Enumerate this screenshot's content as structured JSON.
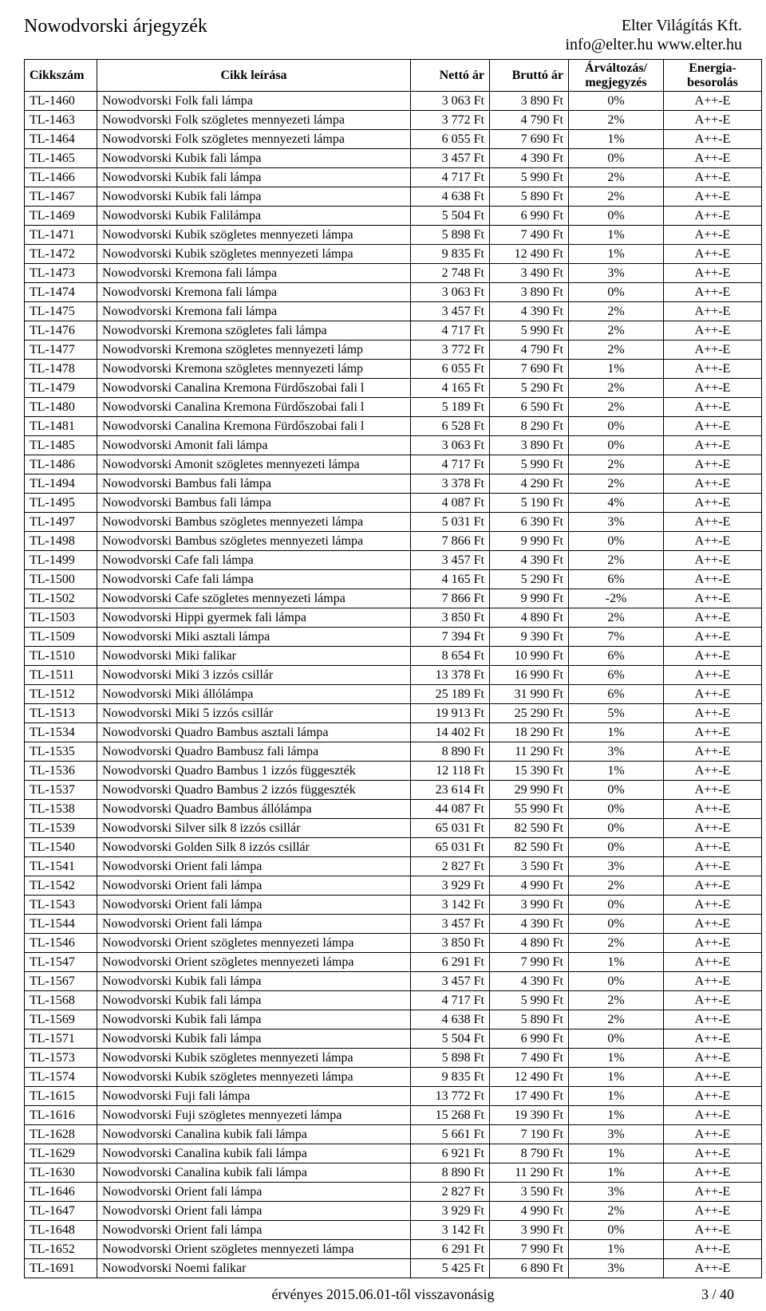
{
  "header": {
    "title_left": "Nowodvorski árjegyzék",
    "company": "Elter Világítás Kft.",
    "contact": "info@elter.hu  www.elter.hu"
  },
  "table": {
    "columns": {
      "code": "Cikkszám",
      "desc": "Cikk leírása",
      "net": "Nettó ár",
      "gross": "Bruttó ár",
      "change": "Árváltozás/\nmegjegyzés",
      "energy": "Energia-\nbesorolás"
    },
    "rows": [
      [
        "TL-1460",
        "Nowodvorski Folk fali lámpa",
        "3 063 Ft",
        "3 890 Ft",
        "0%",
        "A++-E"
      ],
      [
        "TL-1463",
        "Nowodvorski Folk szögletes mennyezeti lámpa",
        "3 772 Ft",
        "4 790 Ft",
        "2%",
        "A++-E"
      ],
      [
        "TL-1464",
        "Nowodvorski Folk szögletes mennyezeti lámpa",
        "6 055 Ft",
        "7 690 Ft",
        "1%",
        "A++-E"
      ],
      [
        "TL-1465",
        "Nowodvorski Kubik fali lámpa",
        "3 457 Ft",
        "4 390 Ft",
        "0%",
        "A++-E"
      ],
      [
        "TL-1466",
        "Nowodvorski Kubik fali lámpa",
        "4 717 Ft",
        "5 990 Ft",
        "2%",
        "A++-E"
      ],
      [
        "TL-1467",
        "Nowodvorski Kubik fali lámpa",
        "4 638 Ft",
        "5 890 Ft",
        "2%",
        "A++-E"
      ],
      [
        "TL-1469",
        "Nowodvorski Kubik Falilámpa",
        "5 504 Ft",
        "6 990 Ft",
        "0%",
        "A++-E"
      ],
      [
        "TL-1471",
        "Nowodvorski Kubik szögletes mennyezeti lámpa",
        "5 898 Ft",
        "7 490 Ft",
        "1%",
        "A++-E"
      ],
      [
        "TL-1472",
        "Nowodvorski Kubik szögletes mennyezeti lámpa",
        "9 835 Ft",
        "12 490 Ft",
        "1%",
        "A++-E"
      ],
      [
        "TL-1473",
        "Nowodvorski Kremona fali lámpa",
        "2 748 Ft",
        "3 490 Ft",
        "3%",
        "A++-E"
      ],
      [
        "TL-1474",
        "Nowodvorski Kremona fali lámpa",
        "3 063 Ft",
        "3 890 Ft",
        "0%",
        "A++-E"
      ],
      [
        "TL-1475",
        "Nowodvorski Kremona fali lámpa",
        "3 457 Ft",
        "4 390 Ft",
        "2%",
        "A++-E"
      ],
      [
        "TL-1476",
        "Nowodvorski Kremona szögletes fali lámpa",
        "4 717 Ft",
        "5 990 Ft",
        "2%",
        "A++-E"
      ],
      [
        "TL-1477",
        "Nowodvorski Kremona szögletes mennyezeti lámp",
        "3 772 Ft",
        "4 790 Ft",
        "2%",
        "A++-E"
      ],
      [
        "TL-1478",
        "Nowodvorski Kremona szögletes mennyezeti lámp",
        "6 055 Ft",
        "7 690 Ft",
        "1%",
        "A++-E"
      ],
      [
        "TL-1479",
        "Nowodvorski Canalina Kremona Fürdőszobai fali l",
        "4 165 Ft",
        "5 290 Ft",
        "2%",
        "A++-E"
      ],
      [
        "TL-1480",
        "Nowodvorski Canalina Kremona Fürdőszobai fali l",
        "5 189 Ft",
        "6 590 Ft",
        "2%",
        "A++-E"
      ],
      [
        "TL-1481",
        "Nowodvorski Canalina Kremona Fürdőszobai fali l",
        "6 528 Ft",
        "8 290 Ft",
        "0%",
        "A++-E"
      ],
      [
        "TL-1485",
        "Nowodvorski Amonit fali lámpa",
        "3 063 Ft",
        "3 890 Ft",
        "0%",
        "A++-E"
      ],
      [
        "TL-1486",
        "Nowodvorski Amonit szögletes mennyezeti lámpa",
        "4 717 Ft",
        "5 990 Ft",
        "2%",
        "A++-E"
      ],
      [
        "TL-1494",
        "Nowodvorski Bambus fali lámpa",
        "3 378 Ft",
        "4 290 Ft",
        "2%",
        "A++-E"
      ],
      [
        "TL-1495",
        "Nowodvorski Bambus fali lámpa",
        "4 087 Ft",
        "5 190 Ft",
        "4%",
        "A++-E"
      ],
      [
        "TL-1497",
        "Nowodvorski Bambus szögletes mennyezeti lámpa",
        "5 031 Ft",
        "6 390 Ft",
        "3%",
        "A++-E"
      ],
      [
        "TL-1498",
        "Nowodvorski Bambus szögletes mennyezeti lámpa",
        "7 866 Ft",
        "9 990 Ft",
        "0%",
        "A++-E"
      ],
      [
        "TL-1499",
        "Nowodvorski Cafe fali lámpa",
        "3 457 Ft",
        "4 390 Ft",
        "2%",
        "A++-E"
      ],
      [
        "TL-1500",
        "Nowodvorski Cafe fali lámpa",
        "4 165 Ft",
        "5 290 Ft",
        "6%",
        "A++-E"
      ],
      [
        "TL-1502",
        "Nowodvorski Cafe szögletes mennyezeti lámpa",
        "7 866 Ft",
        "9 990 Ft",
        "-2%",
        "A++-E"
      ],
      [
        "TL-1503",
        "Nowodvorski Hippi gyermek fali lámpa",
        "3 850 Ft",
        "4 890 Ft",
        "2%",
        "A++-E"
      ],
      [
        "TL-1509",
        "Nowodvorski Miki asztali lámpa",
        "7 394 Ft",
        "9 390 Ft",
        "7%",
        "A++-E"
      ],
      [
        "TL-1510",
        "Nowodvorski Miki falikar",
        "8 654 Ft",
        "10 990 Ft",
        "6%",
        "A++-E"
      ],
      [
        "TL-1511",
        "Nowodvorski Miki 3 izzós csillár",
        "13 378 Ft",
        "16 990 Ft",
        "6%",
        "A++-E"
      ],
      [
        "TL-1512",
        "Nowodvorski Miki állólámpa",
        "25 189 Ft",
        "31 990 Ft",
        "6%",
        "A++-E"
      ],
      [
        "TL-1513",
        "Nowodvorski Miki 5 izzós csillár",
        "19 913 Ft",
        "25 290 Ft",
        "5%",
        "A++-E"
      ],
      [
        "TL-1534",
        "Nowodvorski Quadro Bambus asztali lámpa",
        "14 402 Ft",
        "18 290 Ft",
        "1%",
        "A++-E"
      ],
      [
        "TL-1535",
        "Nowodvorski Quadro Bambusz fali lámpa",
        "8 890 Ft",
        "11 290 Ft",
        "3%",
        "A++-E"
      ],
      [
        "TL-1536",
        "Nowodvorski Quadro Bambus 1 izzós függeszték",
        "12 118 Ft",
        "15 390 Ft",
        "1%",
        "A++-E"
      ],
      [
        "TL-1537",
        "Nowodvorski Quadro Bambus 2 izzós függeszték",
        "23 614 Ft",
        "29 990 Ft",
        "0%",
        "A++-E"
      ],
      [
        "TL-1538",
        "Nowodvorski Quadro Bambus állólámpa",
        "44 087 Ft",
        "55 990 Ft",
        "0%",
        "A++-E"
      ],
      [
        "TL-1539",
        "Nowodvorski Silver silk 8 izzós csillár",
        "65 031 Ft",
        "82 590 Ft",
        "0%",
        "A++-E"
      ],
      [
        "TL-1540",
        "Nowodvorski Golden Silk 8 izzós csillár",
        "65 031 Ft",
        "82 590 Ft",
        "0%",
        "A++-E"
      ],
      [
        "TL-1541",
        "Nowodvorski Orient fali lámpa",
        "2 827 Ft",
        "3 590 Ft",
        "3%",
        "A++-E"
      ],
      [
        "TL-1542",
        "Nowodvorski Orient fali lámpa",
        "3 929 Ft",
        "4 990 Ft",
        "2%",
        "A++-E"
      ],
      [
        "TL-1543",
        "Nowodvorski Orient fali lámpa",
        "3 142 Ft",
        "3 990 Ft",
        "0%",
        "A++-E"
      ],
      [
        "TL-1544",
        "Nowodvorski Orient fali lámpa",
        "3 457 Ft",
        "4 390 Ft",
        "0%",
        "A++-E"
      ],
      [
        "TL-1546",
        "Nowodvorski Orient szögletes mennyezeti lámpa",
        "3 850 Ft",
        "4 890 Ft",
        "2%",
        "A++-E"
      ],
      [
        "TL-1547",
        "Nowodvorski Orient szögletes mennyezeti lámpa",
        "6 291 Ft",
        "7 990 Ft",
        "1%",
        "A++-E"
      ],
      [
        "TL-1567",
        "Nowodvorski Kubik fali lámpa",
        "3 457 Ft",
        "4 390 Ft",
        "0%",
        "A++-E"
      ],
      [
        "TL-1568",
        "Nowodvorski Kubik fali lámpa",
        "4 717 Ft",
        "5 990 Ft",
        "2%",
        "A++-E"
      ],
      [
        "TL-1569",
        "Nowodvorski Kubik fali lámpa",
        "4 638 Ft",
        "5 890 Ft",
        "2%",
        "A++-E"
      ],
      [
        "TL-1571",
        "Nowodvorski Kubik fali lámpa",
        "5 504 Ft",
        "6 990 Ft",
        "0%",
        "A++-E"
      ],
      [
        "TL-1573",
        "Nowodvorski Kubik szögletes mennyezeti lámpa",
        "5 898 Ft",
        "7 490 Ft",
        "1%",
        "A++-E"
      ],
      [
        "TL-1574",
        "Nowodvorski Kubik szögletes mennyezeti lámpa",
        "9 835 Ft",
        "12 490 Ft",
        "1%",
        "A++-E"
      ],
      [
        "TL-1615",
        "Nowodvorski Fuji fali lámpa",
        "13 772 Ft",
        "17 490 Ft",
        "1%",
        "A++-E"
      ],
      [
        "TL-1616",
        "Nowodvorski Fuji szögletes mennyezeti lámpa",
        "15 268 Ft",
        "19 390 Ft",
        "1%",
        "A++-E"
      ],
      [
        "TL-1628",
        "Nowodvorski Canalina kubik fali lámpa",
        "5 661 Ft",
        "7 190 Ft",
        "3%",
        "A++-E"
      ],
      [
        "TL-1629",
        "Nowodvorski Canalina kubik fali lámpa",
        "6 921 Ft",
        "8 790 Ft",
        "1%",
        "A++-E"
      ],
      [
        "TL-1630",
        "Nowodvorski Canalina kubik fali lámpa",
        "8 890 Ft",
        "11 290 Ft",
        "1%",
        "A++-E"
      ],
      [
        "TL-1646",
        "Nowodvorski Orient fali lámpa",
        "2 827 Ft",
        "3 590 Ft",
        "3%",
        "A++-E"
      ],
      [
        "TL-1647",
        "Nowodvorski Orient fali lámpa",
        "3 929 Ft",
        "4 990 Ft",
        "2%",
        "A++-E"
      ],
      [
        "TL-1648",
        "Nowodvorski Orient fali lámpa",
        "3 142 Ft",
        "3 990 Ft",
        "0%",
        "A++-E"
      ],
      [
        "TL-1652",
        "Nowodvorski Orient szögletes mennyezeti lámpa",
        "6 291 Ft",
        "7 990 Ft",
        "1%",
        "A++-E"
      ],
      [
        "TL-1691",
        "Nowodvorski Noemi falikar",
        "5 425 Ft",
        "6 890 Ft",
        "3%",
        "A++-E"
      ]
    ]
  },
  "footer": {
    "validity": "érvényes 2015.06.01-től visszavonásig",
    "page": "3 / 40"
  }
}
